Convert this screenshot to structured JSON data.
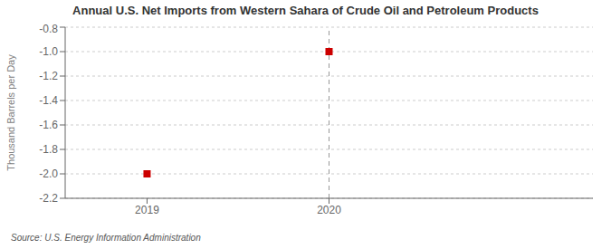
{
  "chart_data": {
    "type": "scatter",
    "title": "Annual U.S. Net Imports from Western Sahara of Crude Oil and Petroleum Products",
    "ylabel": "Thousand Barrels per Day",
    "annotations": [
      "Source: U.S. Energy Information Administration"
    ],
    "x": [
      2019,
      2020
    ],
    "values": [
      -2.0,
      -1.0
    ],
    "color": "#cc0000",
    "marker": "square",
    "xlim": [
      2018.55,
      2021.45
    ],
    "xticks": [
      2019,
      2020
    ],
    "ylim": [
      -2.2,
      -0.8
    ],
    "yticks": [
      -2.2,
      {
        "value": -2.0,
        "label": "-2.0"
      },
      -1.8,
      -1.6,
      -1.4,
      -1.2,
      {
        "value": -1.0,
        "label": "-1.0"
      },
      -0.8
    ],
    "grid": true,
    "vline_x": 2020
  }
}
